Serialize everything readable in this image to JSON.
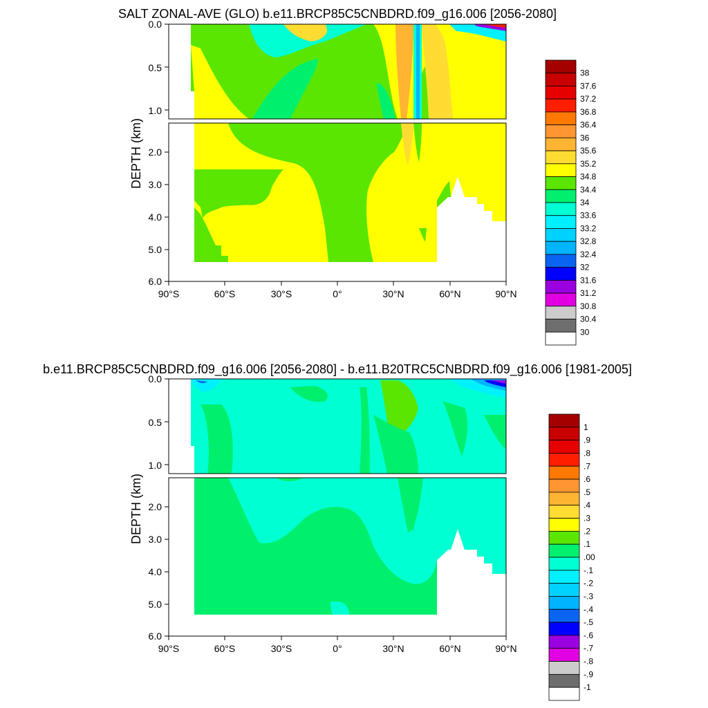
{
  "colors": {
    "salt": [
      "#ffffff",
      "#6e6e6e",
      "#cccccc",
      "#e100e1",
      "#9b00e1",
      "#0000ff",
      "#0a64f0",
      "#00b4ff",
      "#00d2ff",
      "#00f0ff",
      "#00ffd2",
      "#00f06e",
      "#5ae600",
      "#ffff00",
      "#ffdc32",
      "#ffb432",
      "#ff9632",
      "#ff7800",
      "#ff1e00",
      "#e60000",
      "#c80000",
      "#a50000"
    ],
    "anom": [
      "#ffffff",
      "#6e6e6e",
      "#cccccc",
      "#e100e1",
      "#9b00e1",
      "#0000ff",
      "#0a64f0",
      "#00b4ff",
      "#00d2ff",
      "#00f0ff",
      "#00ffd2",
      "#00f06e",
      "#5ae600",
      "#ffff00",
      "#ffdc32",
      "#ffb432",
      "#ff9632",
      "#ff7800",
      "#ff1e00",
      "#e60000",
      "#c80000",
      "#a50000"
    ]
  },
  "chart_data": [
    {
      "type": "heatmap",
      "title": "SALT ZONAL-AVE (GLO) b.e11.BRCP85C5CNBDRD.f09_g16.006 [2056-2080]",
      "xlabel": "",
      "ylabel": "DEPTH (km)",
      "x_ticks": [
        "90°S",
        "60°S",
        "30°S",
        "0°",
        "30°N",
        "60°N",
        "90°N"
      ],
      "y_ticks_upper": [
        "0.0",
        "0.5",
        "1.0"
      ],
      "y_ticks_lower": [
        "2.0",
        "3.0",
        "4.0",
        "5.0",
        "6.0"
      ],
      "xlim": [
        -90,
        90
      ],
      "ylim_km": [
        6.0,
        0.0
      ],
      "colorbar_labels": [
        "38",
        "37.6",
        "37.2",
        "36.8",
        "36.4",
        "36",
        "35.6",
        "35.2",
        "34.8",
        "34.4",
        "34",
        "33.6",
        "33.2",
        "32.8",
        "32.4",
        "32",
        "31.6",
        "31.2",
        "30.8",
        "30.4",
        "30"
      ],
      "colorbar_levels": [
        30,
        30.4,
        30.8,
        31.2,
        31.6,
        32,
        32.4,
        32.8,
        33.2,
        33.6,
        34,
        34.4,
        34.8,
        35.2,
        35.6,
        36,
        36.4,
        36.8,
        37.2,
        37.6,
        38
      ],
      "grid": false,
      "legend": "right"
    },
    {
      "type": "heatmap",
      "title": "b.e11.BRCP85C5CNBDRD.f09_g16.006 [2056-2080] - b.e11.B20TRC5CNBDRD.f09_g16.006 [1981-2005]",
      "xlabel": "",
      "ylabel": "DEPTH (km)",
      "x_ticks": [
        "90°S",
        "60°S",
        "30°S",
        "0°",
        "30°N",
        "60°N",
        "90°N"
      ],
      "y_ticks_upper": [
        "0.0",
        "0.5",
        "1.0"
      ],
      "y_ticks_lower": [
        "2.0",
        "3.0",
        "4.0",
        "5.0",
        "6.0"
      ],
      "xlim": [
        -90,
        90
      ],
      "ylim_km": [
        6.0,
        0.0
      ],
      "colorbar_labels": [
        "1",
        ".9",
        ".8",
        ".7",
        ".6",
        ".5",
        ".4",
        ".3",
        ".2",
        ".1",
        ".00",
        "-.1",
        "-.2",
        "-.3",
        "-.4",
        "-.5",
        "-.6",
        "-.7",
        "-.8",
        "-.9",
        "-1"
      ],
      "colorbar_levels": [
        -1,
        -0.9,
        -0.8,
        -0.7,
        -0.6,
        -0.5,
        -0.4,
        -0.3,
        -0.2,
        -0.1,
        0,
        0.1,
        0.2,
        0.3,
        0.4,
        0.5,
        0.6,
        0.7,
        0.8,
        0.9,
        1
      ],
      "grid": false,
      "legend": "right"
    }
  ]
}
